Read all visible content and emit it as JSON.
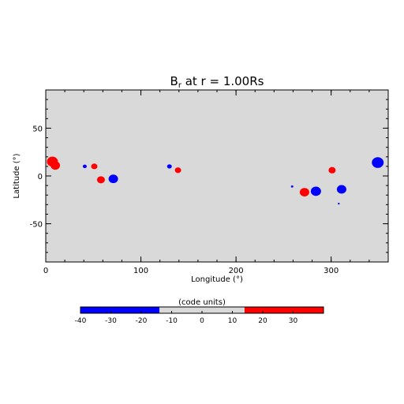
{
  "chart_data": {
    "type": "heatmap",
    "title_main": "B",
    "title_sub": "r",
    "title_rest": " at r = 1.00Rs",
    "xlabel": "Longitude (°)",
    "ylabel": "Latitude (°)",
    "xlim": [
      0,
      360
    ],
    "ylim": [
      -90,
      90
    ],
    "x_ticks": [
      0,
      100,
      200,
      300
    ],
    "y_ticks": [
      -50,
      0,
      50
    ],
    "background_color": "#d9d9d9",
    "regions": [
      {
        "lon": 7,
        "lat": 15,
        "polarity": "positive",
        "value": 38
      },
      {
        "lon": 10,
        "lat": 11,
        "polarity": "positive",
        "value": 38
      },
      {
        "lon": 41,
        "lat": 10,
        "polarity": "negative",
        "value": -38
      },
      {
        "lon": 51,
        "lat": 10,
        "polarity": "positive",
        "value": 38
      },
      {
        "lon": 58,
        "lat": -4,
        "polarity": "positive",
        "value": 38
      },
      {
        "lon": 71,
        "lat": -3,
        "polarity": "negative",
        "value": -38
      },
      {
        "lon": 130,
        "lat": 10,
        "polarity": "negative",
        "value": -38
      },
      {
        "lon": 139,
        "lat": 6,
        "polarity": "positive",
        "value": 38
      },
      {
        "lon": 259,
        "lat": -11,
        "polarity": "negative",
        "value": -38
      },
      {
        "lon": 272,
        "lat": -17,
        "polarity": "positive",
        "value": 38
      },
      {
        "lon": 284,
        "lat": -16,
        "polarity": "negative",
        "value": -38
      },
      {
        "lon": 301,
        "lat": 6,
        "polarity": "positive",
        "value": 38
      },
      {
        "lon": 308,
        "lat": -29,
        "polarity": "negative",
        "value": -38
      },
      {
        "lon": 311,
        "lat": -14,
        "polarity": "negative",
        "value": -38
      },
      {
        "lon": 349,
        "lat": 14,
        "polarity": "negative",
        "value": -38
      }
    ],
    "colorbar": {
      "label": "(code units)",
      "ticks": [
        -40,
        -30,
        -20,
        -10,
        0,
        10,
        20,
        30
      ],
      "range": [
        -40,
        40
      ],
      "segments": [
        {
          "from": -40,
          "to": -14,
          "color": "#0000ff"
        },
        {
          "from": -14,
          "to": 14,
          "color": "#d9d9d9"
        },
        {
          "from": 14,
          "to": 40,
          "color": "#ff0000"
        }
      ]
    },
    "colors": {
      "positive": "#ff0000",
      "negative": "#0000ff"
    }
  }
}
